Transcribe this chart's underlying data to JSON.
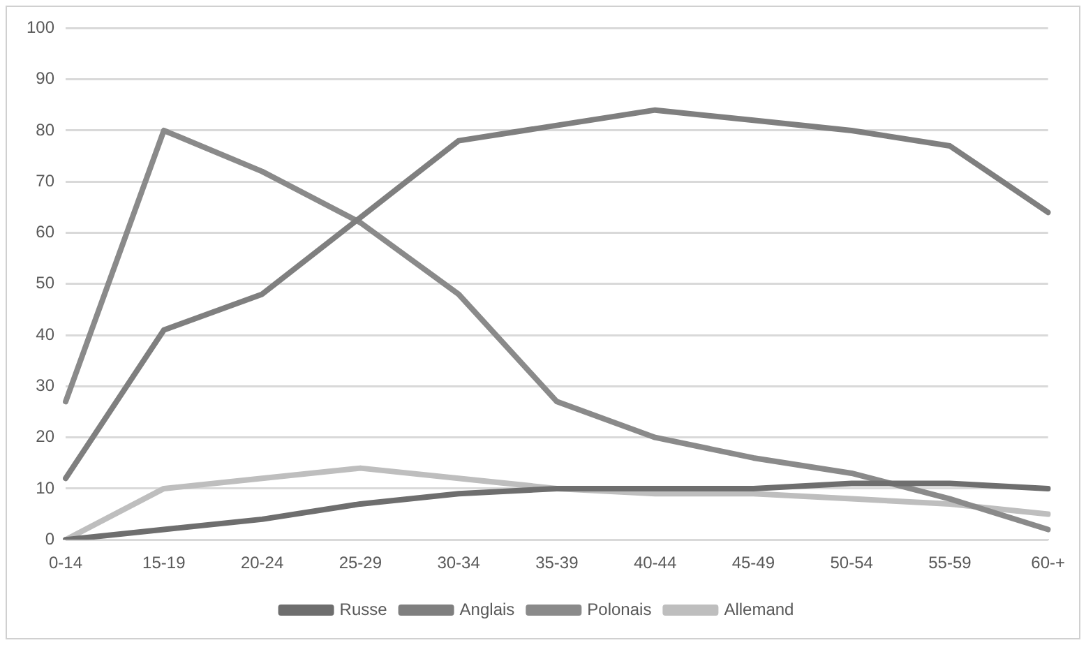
{
  "chart_data": {
    "type": "line",
    "categories": [
      "0-14",
      "15-19",
      "20-24",
      "25-29",
      "30-34",
      "35-39",
      "40-44",
      "45-49",
      "50-54",
      "55-59",
      "60-+"
    ],
    "series": [
      {
        "name": "Russe",
        "color": "#6e6e6e",
        "values": [
          0,
          2,
          4,
          7,
          9,
          10,
          10,
          10,
          11,
          11,
          10
        ]
      },
      {
        "name": "Anglais",
        "color": "#7f7f7f",
        "values": [
          12,
          41,
          48,
          63,
          78,
          81,
          84,
          82,
          80,
          77,
          64
        ]
      },
      {
        "name": "Polonais",
        "color": "#8a8a8a",
        "values": [
          27,
          80,
          72,
          62,
          48,
          27,
          20,
          16,
          13,
          8,
          2
        ]
      },
      {
        "name": "Allemand",
        "color": "#bebebe",
        "values": [
          0,
          10,
          12,
          14,
          12,
          10,
          9,
          9,
          8,
          7,
          5
        ]
      }
    ],
    "ylim": [
      0,
      100
    ],
    "yticks": [
      0,
      10,
      20,
      30,
      40,
      50,
      60,
      70,
      80,
      90,
      100
    ],
    "grid": "y",
    "legend": "bottom",
    "marker": "none",
    "line_style": "solid"
  }
}
